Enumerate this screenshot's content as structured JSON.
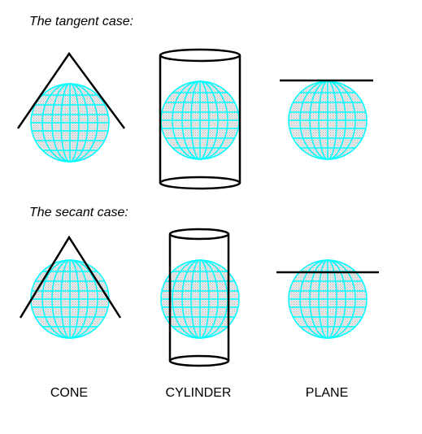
{
  "headings": {
    "tangent": "The tangent case:",
    "secant": "The secant case:"
  },
  "columns": {
    "cone": "CONE",
    "cylinder": "CYLINDER",
    "plane": "PLANE"
  },
  "colors": {
    "globe_fill": "#e6e6e6",
    "graticule": "#00ffff",
    "surface_stroke": "#000000"
  }
}
